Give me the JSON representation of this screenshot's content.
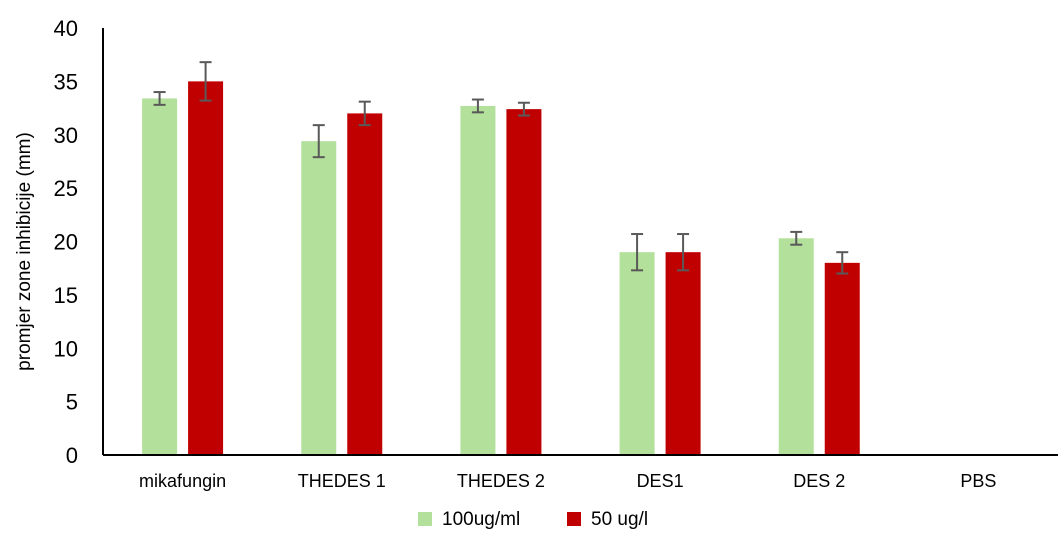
{
  "chart_data": {
    "type": "bar",
    "title": "",
    "xlabel": "",
    "ylabel": "promjer zone inhibicije (mm)",
    "ylim": [
      0,
      40
    ],
    "yticks": [
      0,
      5,
      10,
      15,
      20,
      25,
      30,
      35,
      40
    ],
    "grid": false,
    "legend_position": "bottom",
    "categories": [
      "mikafungin",
      "THEDES 1",
      "THEDES 2",
      "DES1",
      "DES 2",
      "PBS"
    ],
    "series": [
      {
        "name": "100ug/ml",
        "color": "#b3e09b",
        "values": [
          33.4,
          29.4,
          32.7,
          19.0,
          20.3,
          0
        ],
        "errors": [
          0.6,
          1.5,
          0.6,
          1.7,
          0.6,
          0
        ]
      },
      {
        "name": "50 ug/l",
        "color": "#c00000",
        "values": [
          35.0,
          32.0,
          32.4,
          19.0,
          18.0,
          0
        ],
        "errors": [
          1.8,
          1.1,
          0.6,
          1.7,
          1.0,
          0
        ]
      }
    ]
  }
}
